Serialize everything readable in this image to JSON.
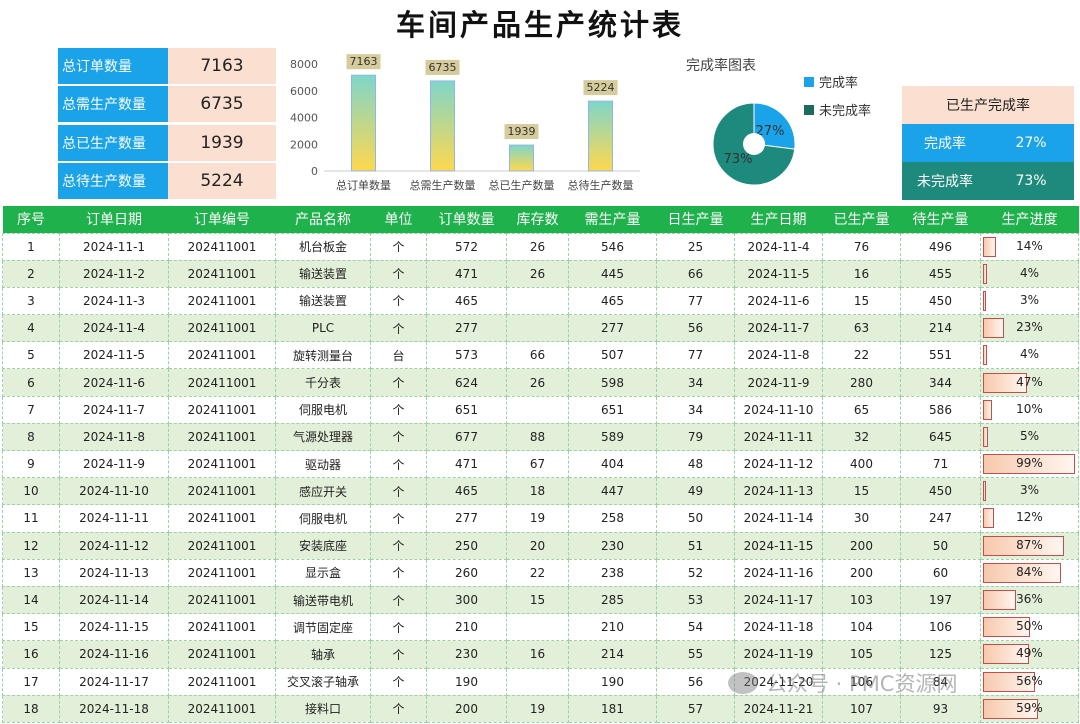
{
  "title": "车间产品生产统计表",
  "summary": [
    {
      "label": "总订单数量",
      "value": "7163"
    },
    {
      "label": "总需生产数量",
      "value": "6735"
    },
    {
      "label": "总已生产数量",
      "value": "1939"
    },
    {
      "label": "总待生产数量",
      "value": "5224"
    }
  ],
  "chart_data": [
    {
      "type": "bar",
      "categories": [
        "总订单数量",
        "总需生产数量",
        "总已生产数量",
        "总待生产数量"
      ],
      "values": [
        7163,
        6735,
        1939,
        5224
      ],
      "data_labels": [
        "7163",
        "6735",
        "1939",
        "5224"
      ],
      "yticks": [
        "0",
        "2000",
        "4000",
        "6000",
        "8000"
      ],
      "ylim": [
        0,
        8000
      ],
      "colors": {
        "bar_top": "#7fd6c9",
        "bar_bottom": "#ffd84d",
        "label_bg": "#c8b97a"
      }
    },
    {
      "type": "pie",
      "title": "完成率图表",
      "labels": [
        "完成率",
        "未完成率"
      ],
      "values": [
        27,
        73
      ],
      "data_labels": [
        "27%",
        "73%"
      ],
      "colors": [
        "#1aa3e8",
        "#1e8a7e"
      ],
      "legend_position": "right"
    }
  ],
  "completion_panel": {
    "header": "已生产完成率",
    "rows": [
      {
        "label": "完成率",
        "value": "27%",
        "color": "#1aa3e8"
      },
      {
        "label": "未完成率",
        "value": "73%",
        "color": "#1e8a7e"
      }
    ]
  },
  "table": {
    "headers": [
      "序号",
      "订单日期",
      "订单编号",
      "产品名称",
      "单位",
      "订单数量",
      "库存数",
      "需生产量",
      "日生产量",
      "生产日期",
      "已生产量",
      "待生产量",
      "生产进度"
    ],
    "rows": [
      [
        "1",
        "2024-11-1",
        "202411001",
        "机台板金",
        "个",
        "572",
        "26",
        "546",
        "25",
        "2024-11-4",
        "76",
        "496",
        "14%"
      ],
      [
        "2",
        "2024-11-2",
        "202411001",
        "输送装置",
        "个",
        "471",
        "26",
        "445",
        "66",
        "2024-11-5",
        "16",
        "455",
        "4%"
      ],
      [
        "3",
        "2024-11-3",
        "202411001",
        "输送装置",
        "个",
        "465",
        "",
        "465",
        "77",
        "2024-11-6",
        "15",
        "450",
        "3%"
      ],
      [
        "4",
        "2024-11-4",
        "202411001",
        "PLC",
        "个",
        "277",
        "",
        "277",
        "56",
        "2024-11-7",
        "63",
        "214",
        "23%"
      ],
      [
        "5",
        "2024-11-5",
        "202411001",
        "旋转测量台",
        "台",
        "573",
        "66",
        "507",
        "77",
        "2024-11-8",
        "22",
        "551",
        "4%"
      ],
      [
        "6",
        "2024-11-6",
        "202411001",
        "千分表",
        "个",
        "624",
        "26",
        "598",
        "34",
        "2024-11-9",
        "280",
        "344",
        "47%"
      ],
      [
        "7",
        "2024-11-7",
        "202411001",
        "伺服电机",
        "个",
        "651",
        "",
        "651",
        "34",
        "2024-11-10",
        "65",
        "586",
        "10%"
      ],
      [
        "8",
        "2024-11-8",
        "202411001",
        "气源处理器",
        "个",
        "677",
        "88",
        "589",
        "79",
        "2024-11-11",
        "32",
        "645",
        "5%"
      ],
      [
        "9",
        "2024-11-9",
        "202411001",
        "驱动器",
        "个",
        "471",
        "67",
        "404",
        "48",
        "2024-11-12",
        "400",
        "71",
        "99%"
      ],
      [
        "10",
        "2024-11-10",
        "202411001",
        "感应开关",
        "个",
        "465",
        "18",
        "447",
        "49",
        "2024-11-13",
        "15",
        "450",
        "3%"
      ],
      [
        "11",
        "2024-11-11",
        "202411001",
        "伺服电机",
        "个",
        "277",
        "19",
        "258",
        "50",
        "2024-11-14",
        "30",
        "247",
        "12%"
      ],
      [
        "12",
        "2024-11-12",
        "202411001",
        "安装底座",
        "个",
        "250",
        "20",
        "230",
        "51",
        "2024-11-15",
        "200",
        "50",
        "87%"
      ],
      [
        "13",
        "2024-11-13",
        "202411001",
        "显示盒",
        "个",
        "260",
        "22",
        "238",
        "52",
        "2024-11-16",
        "200",
        "60",
        "84%"
      ],
      [
        "14",
        "2024-11-14",
        "202411001",
        "输送带电机",
        "个",
        "300",
        "15",
        "285",
        "53",
        "2024-11-17",
        "103",
        "197",
        "36%"
      ],
      [
        "15",
        "2024-11-15",
        "202411001",
        "调节固定座",
        "个",
        "210",
        "",
        "210",
        "54",
        "2024-11-18",
        "104",
        "106",
        "50%"
      ],
      [
        "16",
        "2024-11-16",
        "202411001",
        "轴承",
        "个",
        "230",
        "16",
        "214",
        "55",
        "2024-11-19",
        "105",
        "125",
        "49%"
      ],
      [
        "17",
        "2024-11-17",
        "202411001",
        "交叉滚子轴承",
        "个",
        "190",
        "",
        "190",
        "56",
        "2024-11-20",
        "106",
        "84",
        "56%"
      ],
      [
        "18",
        "2024-11-18",
        "202411001",
        "接料口",
        "个",
        "200",
        "19",
        "181",
        "57",
        "2024-11-21",
        "107",
        "93",
        "59%"
      ]
    ]
  },
  "watermark": "公众号 · PMC资源网"
}
